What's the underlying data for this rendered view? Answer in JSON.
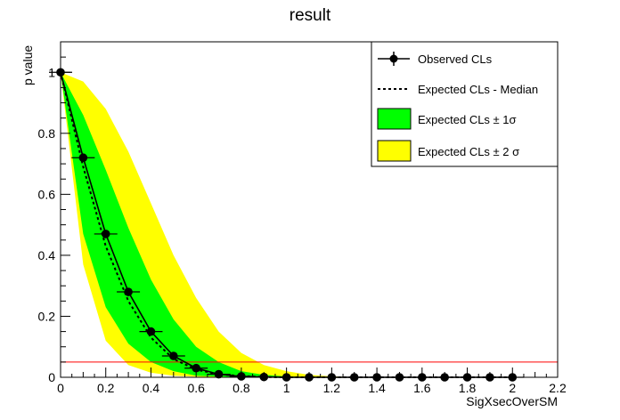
{
  "chart_data": {
    "type": "line",
    "title": "result",
    "xlabel": "SigXsecOverSM",
    "ylabel": "p value",
    "xlim": [
      0,
      2.2
    ],
    "ylim": [
      0,
      1.1
    ],
    "x_ticks": [
      "0",
      "0.2",
      "0.4",
      "0.6",
      "0.8",
      "1",
      "1.2",
      "1.4",
      "1.6",
      "1.8",
      "2",
      "2.2"
    ],
    "y_ticks": [
      "0",
      "0.2",
      "0.4",
      "0.6",
      "0.8",
      "1"
    ],
    "threshold": {
      "y": 0.05,
      "color": "#ff0000"
    },
    "legend_position": "top-right",
    "colors": {
      "band2": "#ffff00",
      "band1": "#00ff00",
      "line": "#000000"
    },
    "series": [
      {
        "name": "Observed CLs",
        "style": "line-markers",
        "x": [
          0,
          0.1,
          0.2,
          0.3,
          0.4,
          0.5,
          0.6,
          0.7,
          0.8,
          0.9,
          1.0,
          1.1,
          1.2,
          1.3,
          1.4,
          1.5,
          1.6,
          1.7,
          1.8,
          1.9,
          2.0
        ],
        "y": [
          1.0,
          0.72,
          0.47,
          0.28,
          0.15,
          0.07,
          0.03,
          0.01,
          0.003,
          0.001,
          0,
          0,
          0,
          0,
          0,
          0,
          0,
          0,
          0,
          0,
          0
        ]
      },
      {
        "name": "Expected CLs - Median",
        "style": "dashed",
        "x": [
          0,
          0.1,
          0.2,
          0.3,
          0.4,
          0.5,
          0.6,
          0.7,
          0.8,
          0.9,
          1.0,
          1.1,
          1.2,
          1.3,
          1.4,
          1.5,
          1.6,
          1.7,
          1.8,
          1.9,
          2.0
        ],
        "y": [
          1.0,
          0.69,
          0.43,
          0.25,
          0.13,
          0.06,
          0.025,
          0.01,
          0.004,
          0.001,
          0,
          0,
          0,
          0,
          0,
          0,
          0,
          0,
          0,
          0,
          0
        ]
      },
      {
        "name": "Expected CLs ± 1σ",
        "style": "band",
        "x": [
          0,
          0.1,
          0.2,
          0.3,
          0.4,
          0.5,
          0.6,
          0.7,
          0.8,
          0.9,
          1.0,
          1.1,
          1.2,
          1.3,
          1.4,
          1.5,
          1.6,
          1.7,
          1.8,
          1.9,
          2.0
        ],
        "low": [
          1.0,
          0.47,
          0.23,
          0.11,
          0.05,
          0.02,
          0.005,
          0.002,
          0,
          0,
          0,
          0,
          0,
          0,
          0,
          0,
          0,
          0,
          0,
          0,
          0
        ],
        "high": [
          1.0,
          0.86,
          0.68,
          0.49,
          0.32,
          0.19,
          0.1,
          0.05,
          0.02,
          0.008,
          0.003,
          0.001,
          0,
          0,
          0,
          0,
          0,
          0,
          0,
          0,
          0
        ]
      },
      {
        "name": "Expected CLs ± 2 σ",
        "style": "band",
        "x": [
          0,
          0.1,
          0.2,
          0.3,
          0.4,
          0.5,
          0.6,
          0.7,
          0.8,
          0.9,
          1.0,
          1.1,
          1.2,
          1.3,
          1.4,
          1.5,
          1.6,
          1.7,
          1.8,
          1.9,
          2.0
        ],
        "low": [
          1.0,
          0.37,
          0.12,
          0.04,
          0.015,
          0.005,
          0.002,
          0,
          0,
          0,
          0,
          0,
          0,
          0,
          0,
          0,
          0,
          0,
          0,
          0,
          0
        ],
        "high": [
          1.0,
          0.97,
          0.88,
          0.74,
          0.57,
          0.4,
          0.26,
          0.15,
          0.08,
          0.04,
          0.02,
          0.008,
          0.003,
          0.001,
          0,
          0,
          0,
          0,
          0,
          0,
          0
        ]
      }
    ]
  },
  "legend": {
    "observed": "Observed CLs",
    "median": "Expected CLs - Median",
    "band1": "Expected CLs ± 1σ",
    "band2": "Expected CLs ± 2 σ"
  }
}
